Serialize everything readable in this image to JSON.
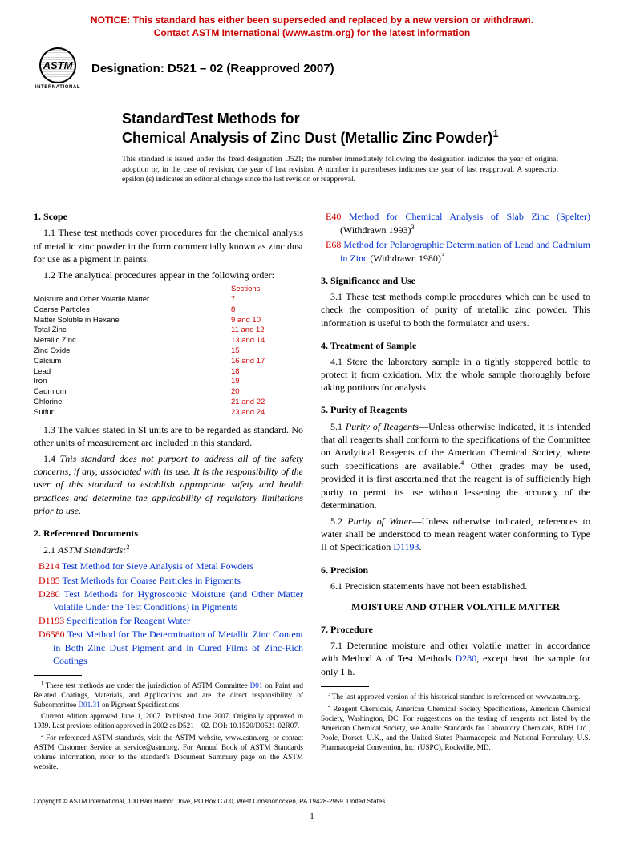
{
  "notice": {
    "line1": "NOTICE: This standard has either been superseded and replaced by a new version or withdrawn.",
    "line2": "Contact ASTM International (www.astm.org) for the latest information"
  },
  "logo": {
    "text": "ASTM",
    "sub": "INTERNATIONAL"
  },
  "designation": "Designation: D521 – 02 (Reapproved 2007)",
  "title_line1": "StandardTest Methods for",
  "title_line2": "Chemical Analysis of Zinc Dust (Metallic Zinc Powder)",
  "title_sup": "1",
  "issue_note": "This standard is issued under the fixed designation D521; the number immediately following the designation indicates the year of original adoption or, in the case of revision, the year of last revision. A number in parentheses indicates the year of last reapproval. A superscript epsilon (ε) indicates an editorial change since the last revision or reapproval.",
  "s1": {
    "head": "1. Scope",
    "p11": "1.1 These test methods cover procedures for the chemical analysis of metallic zinc powder in the form commercially known as zinc dust for use as a pigment in paints.",
    "p12": "1.2 The analytical procedures appear in the following order:",
    "sections_hdr": "Sections",
    "rows": [
      {
        "label": "Moisture and Other Volatile Matter",
        "sec": "7"
      },
      {
        "label": "Coarse Particles",
        "sec": "8"
      },
      {
        "label": "Matter Soluble in Hexane",
        "sec": "9 and 10"
      },
      {
        "label": "Total Zinc",
        "sec": "11 and 12"
      },
      {
        "label": "Metallic Zinc",
        "sec": "13 and 14"
      },
      {
        "label": "Zinc Oxide",
        "sec": "15"
      },
      {
        "label": "Calcium",
        "sec": "16 and 17"
      },
      {
        "label": "Lead",
        "sec": "18"
      },
      {
        "label": "Iron",
        "sec": "19"
      },
      {
        "label": "Cadmium",
        "sec": "20"
      },
      {
        "label": "Chlorine",
        "sec": "21 and 22"
      },
      {
        "label": "Sulfur",
        "sec": "23 and 24"
      }
    ],
    "p13": "1.3 The values stated in SI units are to be regarded as standard. No other units of measurement are included in this standard.",
    "p14": "1.4 This standard does not purport to address all of the safety concerns, if any, associated with its use. It is the responsibility of the user of this standard to establish appropriate safety and health practices and determine the applicability of regulatory limitations prior to use."
  },
  "s2": {
    "head": "2. Referenced Documents",
    "p21": "2.1 ",
    "p21_it": "ASTM Standards:",
    "p21_sup": "2",
    "refs": [
      {
        "code": "B214",
        "title": "Test Method for Sieve Analysis of Metal Powders"
      },
      {
        "code": "D185",
        "title": "Test Methods for Coarse Particles in Pigments"
      },
      {
        "code": "D280",
        "title": "Test Methods for Hygroscopic Moisture (and Other Matter Volatile Under the Test Conditions) in Pigments"
      },
      {
        "code": "D1193",
        "title": "Specification for Reagent Water"
      },
      {
        "code": "D6580",
        "title": "Test Method for The Determination of Metallic Zinc Content in Both Zinc Dust Pigment and in Cured Films of Zinc-Rich Coatings"
      }
    ],
    "refs_right": [
      {
        "code": "E40",
        "title": "Method for Chemical Analysis of Slab Zinc (Spelter)",
        "tail": " (Withdrawn 1993)",
        "sup": "3"
      },
      {
        "code": "E68",
        "title": "Method for Polarographic Determination of Lead and Cadmium in Zinc",
        "tail": " (Withdrawn 1980)",
        "sup": "3"
      }
    ]
  },
  "s3": {
    "head": "3. Significance and Use",
    "p31": "3.1 These test methods compile procedures which can be used to check the composition of purity of metallic zinc powder. This information is useful to both the formulator and users."
  },
  "s4": {
    "head": "4. Treatment of Sample",
    "p41": "4.1 Store the laboratory sample in a tightly stoppered bottle to protect it from oxidation. Mix the whole sample thoroughly before taking portions for analysis."
  },
  "s5": {
    "head": "5. Purity of Reagents",
    "p51_lead": "5.1 ",
    "p51_run": "Purity of Reagents",
    "p51_body": "—Unless otherwise indicated, it is intended that all reagents shall conform to the specifications of the Committee on Analytical Reagents of the American Chemical Society, where such specifications are available.",
    "p51_sup": "4",
    "p51_tail": " Other grades may be used, provided it is first ascertained that the reagent is of sufficiently high purity to permit its use without lessening the accuracy of the determination.",
    "p52_lead": "5.2 ",
    "p52_run": "Purity of Water",
    "p52_body": "—Unless otherwise indicated, references to water shall be understood to mean reagent water conforming to Type II of Specification ",
    "p52_ref": "D1193",
    "p52_tail": "."
  },
  "s6": {
    "head": "6. Precision",
    "p61": "6.1 Precision statements have not been established."
  },
  "center_head": "MOISTURE AND OTHER VOLATILE MATTER",
  "s7": {
    "head": "7. Procedure",
    "p71a": "7.1 Determine moisture and other volatile matter in accordance with Method A of Test Methods ",
    "p71_ref": "D280",
    "p71b": ", except heat the sample for only 1 h."
  },
  "footnotes_left": {
    "f1a": "These test methods are under the jurisdiction of ASTM Committee ",
    "f1_ref": "D01",
    "f1b": " on Paint and Related Coatings, Materials, and Applications and are the direct responsibility of Subcommittee ",
    "f1_ref2": "D01.31",
    "f1c": " on Pigment Specifications.",
    "f1d": "Current edition approved June 1, 2007. Published June 2007. Originally approved in 1939. Last previous edition approved in 2002 as D521 – 02. DOI: 10.1520/D0521-02R07.",
    "f2": "For referenced ASTM standards, visit the ASTM website, www.astm.org, or contact ASTM Customer Service at service@astm.org. For Annual Book of ASTM Standards volume information, refer to the standard's Document Summary page on the ASTM website."
  },
  "footnotes_right": {
    "f3": "The last approved version of this historical standard is referenced on www.astm.org.",
    "f4": "Reagent Chemicals, American Chemical Society Specifications, American Chemical Society, Washington, DC. For suggestions on the testing of reagents not listed by the American Chemical Society, see Analar Standards for Laboratory Chemicals, BDH Ltd., Poole, Dorset, U.K., and the United States Pharmacopeia and National Formulary, U.S. Pharmacopeial Convention, Inc. (USPC), Rockville, MD."
  },
  "copyright": "Copyright © ASTM International, 100 Barr Harbor Drive, PO Box C700, West Conshohocken, PA 19428-2959. United States",
  "page_num": "1"
}
